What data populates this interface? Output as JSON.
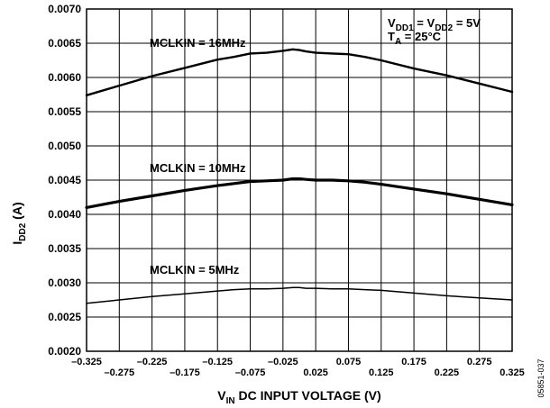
{
  "chart_data": {
    "type": "line",
    "xlim": [
      -0.325,
      0.325
    ],
    "ylim": [
      0.002,
      0.007
    ],
    "grid": true,
    "x_major_ticks": [
      -0.325,
      -0.275,
      -0.225,
      -0.175,
      -0.125,
      -0.075,
      -0.025,
      0.025,
      0.075,
      0.125,
      0.175,
      0.225,
      0.275,
      0.325
    ],
    "x_tick_labels": [
      "–0.325",
      "–0.275",
      "–0.225",
      "–0.175",
      "–0.125",
      "–0.075",
      "–0.025",
      "0.025",
      "0.075",
      "0.125",
      "0.175",
      "0.225",
      "0.275",
      "0.325"
    ],
    "y_major_ticks": [
      0.002,
      0.0025,
      0.003,
      0.0035,
      0.004,
      0.0045,
      0.005,
      0.0055,
      0.006,
      0.0065,
      0.007
    ],
    "y_tick_labels": [
      "0.0020",
      "0.0025",
      "0.0030",
      "0.0035",
      "0.0040",
      "0.0045",
      "0.0050",
      "0.0055",
      "0.0060",
      "0.0065",
      "0.0070"
    ],
    "xlabel": {
      "main": "V",
      "sub": "IN",
      "rest": " DC INPUT VOLTAGE (V)"
    },
    "ylabel": {
      "main": "I",
      "sub": "DD2",
      "rest": " (A)"
    },
    "conditions": [
      {
        "parts": [
          [
            "V",
            ""
          ],
          [
            "DD1",
            "sub"
          ],
          [
            " = V",
            ""
          ],
          [
            "DD2",
            "sub"
          ],
          [
            " = 5V",
            ""
          ]
        ]
      },
      {
        "parts": [
          [
            "T",
            ""
          ],
          [
            "A",
            "sub"
          ],
          [
            " = 25°C",
            ""
          ]
        ]
      }
    ],
    "figure_code": "05851-037",
    "series": [
      {
        "name": "MCLKIN = 16MHz",
        "x": [
          -0.325,
          -0.275,
          -0.225,
          -0.175,
          -0.125,
          -0.1,
          -0.075,
          -0.05,
          -0.025,
          -0.01,
          0.0,
          0.01,
          0.025,
          0.05,
          0.075,
          0.1,
          0.125,
          0.175,
          0.225,
          0.275,
          0.325
        ],
        "values": [
          0.00574,
          0.00588,
          0.00602,
          0.00614,
          0.00626,
          0.0063,
          0.00635,
          0.00636,
          0.00639,
          0.00641,
          0.0064,
          0.00638,
          0.00636,
          0.00635,
          0.00634,
          0.0063,
          0.00625,
          0.00613,
          0.00603,
          0.00591,
          0.00579
        ],
        "stroke_width": 2.4
      },
      {
        "name": "MCLKIN = 10MHz",
        "x": [
          -0.325,
          -0.275,
          -0.225,
          -0.175,
          -0.125,
          -0.1,
          -0.075,
          -0.05,
          -0.025,
          -0.01,
          0.0,
          0.01,
          0.025,
          0.05,
          0.075,
          0.1,
          0.125,
          0.175,
          0.225,
          0.275,
          0.325
        ],
        "values": [
          0.0041,
          0.00419,
          0.00427,
          0.00435,
          0.00442,
          0.00445,
          0.00448,
          0.00449,
          0.0045,
          0.00452,
          0.00452,
          0.00451,
          0.0045,
          0.0045,
          0.00449,
          0.00447,
          0.00444,
          0.00437,
          0.0043,
          0.00422,
          0.00414
        ],
        "stroke_width": 3.2
      },
      {
        "name": "MCLKIN = 5MHz",
        "x": [
          -0.325,
          -0.275,
          -0.225,
          -0.175,
          -0.125,
          -0.1,
          -0.075,
          -0.05,
          -0.025,
          -0.01,
          0.0,
          0.01,
          0.025,
          0.05,
          0.075,
          0.1,
          0.125,
          0.175,
          0.225,
          0.275,
          0.325
        ],
        "values": [
          0.0027,
          0.00275,
          0.0028,
          0.00284,
          0.00288,
          0.0029,
          0.00291,
          0.00291,
          0.00292,
          0.00293,
          0.00293,
          0.00292,
          0.00292,
          0.00291,
          0.00291,
          0.0029,
          0.00289,
          0.00285,
          0.00281,
          0.00278,
          0.00275
        ],
        "stroke_width": 1.5
      }
    ]
  }
}
